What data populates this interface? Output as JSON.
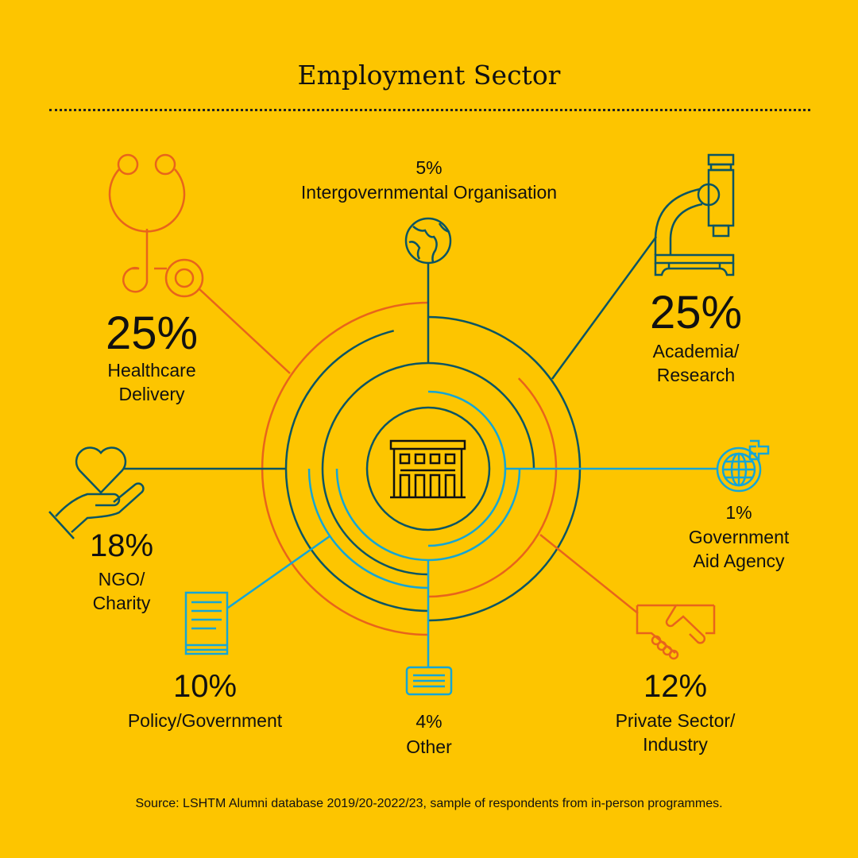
{
  "title": "Employment Sector",
  "source": "Source: LSHTM Alumni database 2019/20-2022/23, sample of respondents from in-person programmes.",
  "colors": {
    "background": "#FDC500",
    "dark": "#0B5563",
    "orange": "#E8641B",
    "cyan": "#14A6D6"
  },
  "sectors": {
    "intergov": {
      "pct": "5%",
      "label1": "Intergovernmental Organisation",
      "icon": "globe-icon"
    },
    "healthcare": {
      "pct": "25%",
      "label1": "Healthcare",
      "label2": "Delivery",
      "icon": "stethoscope-icon"
    },
    "academia": {
      "pct": "25%",
      "label1": "Academia/",
      "label2": "Research",
      "icon": "microscope-icon"
    },
    "ngo": {
      "pct": "18%",
      "label1": "NGO/",
      "label2": "Charity",
      "icon": "heart-hand-icon"
    },
    "aid": {
      "pct": "1%",
      "label1": "Government",
      "label2": "Aid Agency",
      "icon": "globe-plus-icon"
    },
    "policy": {
      "pct": "10%",
      "label1": "Policy/Government",
      "icon": "document-icon"
    },
    "other": {
      "pct": "4%",
      "label1": "Other",
      "icon": "panel-icon"
    },
    "private": {
      "pct": "12%",
      "label1": "Private Sector/",
      "label2": "Industry",
      "icon": "handshake-icon"
    }
  },
  "chart_data": {
    "type": "radial-bar",
    "title": "Employment Sector",
    "categories": [
      "Healthcare Delivery",
      "Academia/Research",
      "NGO/Charity",
      "Policy/Government",
      "Private Sector/Industry",
      "Intergovernmental Organisation",
      "Other",
      "Government Aid Agency"
    ],
    "values": [
      25,
      25,
      18,
      10,
      12,
      5,
      4,
      1
    ],
    "unit": "%"
  }
}
